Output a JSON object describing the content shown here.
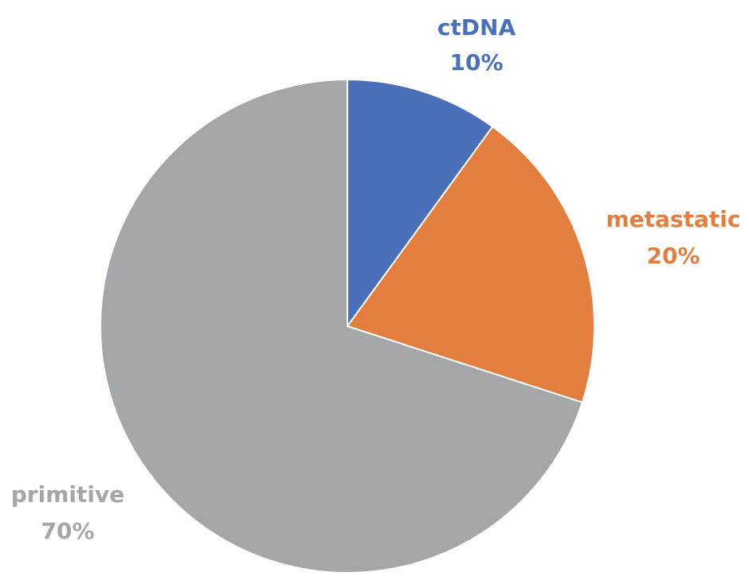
{
  "chart_data": {
    "type": "pie",
    "title": "",
    "slices": [
      {
        "label": "ctDNA",
        "value": 10,
        "value_label": "10%",
        "color": "#4A70BA"
      },
      {
        "label": "metastatic",
        "value": 20,
        "value_label": "20%",
        "color": "#E47E3E"
      },
      {
        "label": "primitive",
        "value": 70,
        "value_label": "70%",
        "color": "#A5A6A8"
      }
    ],
    "start_angle": "12 o'clock",
    "direction": "clockwise",
    "legend": "none"
  }
}
